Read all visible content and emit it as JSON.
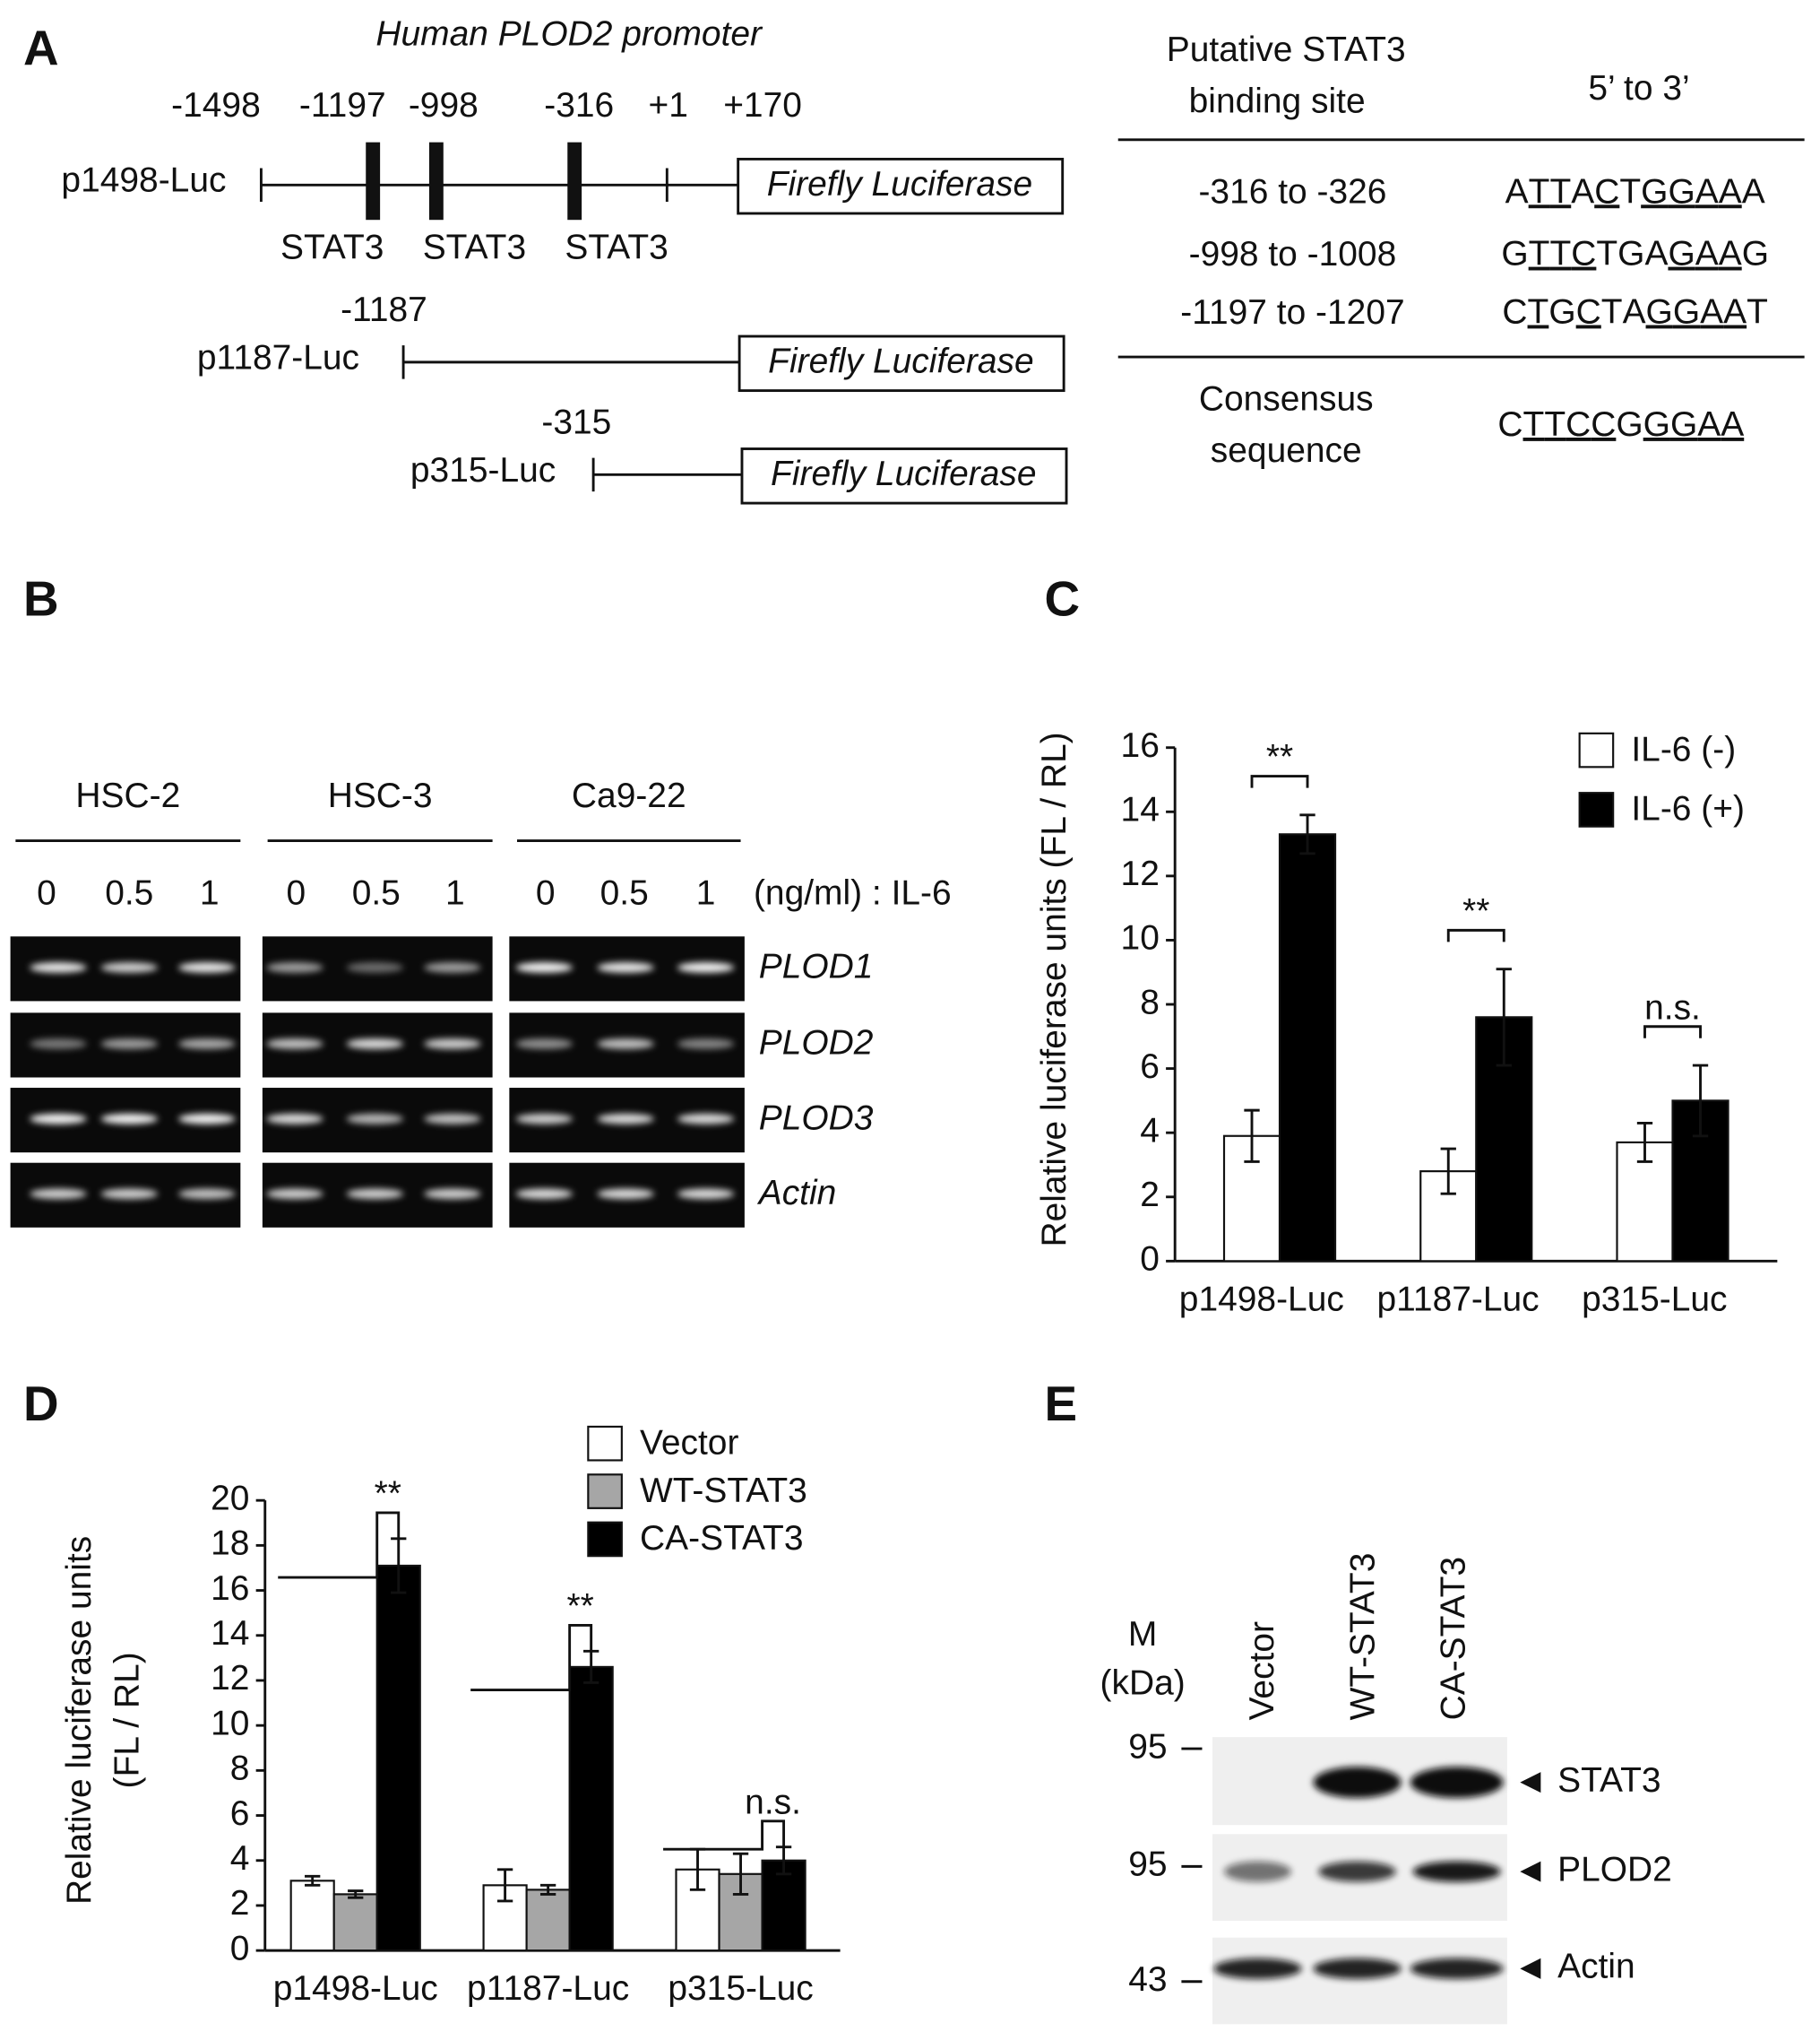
{
  "panel_a": {
    "label": "A",
    "title": "Human PLOD2 promoter",
    "positions": [
      "-1498",
      "-1197",
      "-998",
      "-316",
      "+1",
      "+170"
    ],
    "sites": [
      "STAT3",
      "STAT3",
      "STAT3"
    ],
    "constructs": [
      {
        "name": "p1498-Luc",
        "reporter": "Firefly Luciferase"
      },
      {
        "name": "p1187-Luc",
        "start": "-1187",
        "reporter": "Firefly Luciferase"
      },
      {
        "name": "p315-Luc",
        "start": "-315",
        "reporter": "Firefly Luciferase"
      }
    ],
    "table": {
      "header": [
        [
          "Putative STAT3",
          "binding site"
        ],
        "5’ to 3’"
      ],
      "rows": [
        [
          "-316 to -326",
          "ATTACTGGAAA"
        ],
        [
          "-998 to -1008",
          "GTTCTGAGAAG"
        ],
        [
          "-1197 to -1207",
          "CTGCTAGGAAT"
        ]
      ],
      "consensus": [
        [
          "Consensus",
          "sequence"
        ],
        "CTTCCGGGAA"
      ]
    }
  },
  "panel_b": {
    "label": "B",
    "groups": [
      {
        "name": "HSC-2",
        "doses": [
          "0",
          "0.5",
          "1"
        ]
      },
      {
        "name": "HSC-3",
        "doses": [
          "0",
          "0.5",
          "1"
        ]
      },
      {
        "name": "Ca9-22",
        "doses": [
          "0",
          "0.5",
          "1"
        ]
      }
    ],
    "dose_unit": "(ng/ml) : IL-6",
    "genes": [
      "PLOD1",
      "PLOD2",
      "PLOD3",
      "Actin"
    ]
  },
  "chart_data": [
    {
      "panel": "C",
      "type": "bar",
      "categories": [
        "p1498-Luc",
        "p1187-Luc",
        "p315-Luc"
      ],
      "y_label": "Relative luciferase units (FL / RL)",
      "series": [
        {
          "name": "IL-6 (-)",
          "color": "#ffffff",
          "values": [
            3.9,
            2.8,
            3.7
          ],
          "errors": [
            0.8,
            0.7,
            0.6
          ]
        },
        {
          "name": "IL-6 (+)",
          "color": "#000000",
          "values": [
            13.3,
            7.6,
            5.0
          ],
          "errors": [
            0.6,
            1.5,
            1.1
          ]
        }
      ],
      "annotations": [
        "**",
        "**",
        "n.s."
      ],
      "ylim": [
        0,
        16
      ],
      "yticks": [
        0,
        2,
        4,
        6,
        8,
        10,
        12,
        14,
        16
      ],
      "legend": "upper right"
    },
    {
      "panel": "D",
      "type": "bar",
      "categories": [
        "p1498-Luc",
        "p1187-Luc",
        "p315-Luc"
      ],
      "y_label": [
        "Relative luciferase units",
        "(FL / RL)"
      ],
      "series": [
        {
          "name": "Vector",
          "color": "#ffffff",
          "values": [
            3.1,
            2.9,
            3.6
          ],
          "errors": [
            0.2,
            0.7,
            0.9
          ]
        },
        {
          "name": "WT-STAT3",
          "color": "#a6a6a6",
          "values": [
            2.5,
            2.7,
            3.4
          ],
          "errors": [
            0.15,
            0.2,
            0.9
          ]
        },
        {
          "name": "CA-STAT3",
          "color": "#000000",
          "values": [
            17.1,
            12.6,
            4.0
          ],
          "errors": [
            1.2,
            0.7,
            0.6
          ]
        }
      ],
      "annotations": [
        "**",
        "**",
        "n.s."
      ],
      "ylim": [
        0,
        20
      ],
      "yticks": [
        0,
        2,
        4,
        6,
        8,
        10,
        12,
        14,
        16,
        18,
        20
      ],
      "legend": "top"
    }
  ],
  "panel_e": {
    "label": "E",
    "marker_header": [
      "M",
      "(kDa)"
    ],
    "lanes": [
      "Vector",
      "WT-STAT3",
      "CA-STAT3"
    ],
    "markers": [
      "95",
      "95",
      "43"
    ],
    "proteins": [
      "STAT3",
      "PLOD2",
      "Actin"
    ]
  }
}
